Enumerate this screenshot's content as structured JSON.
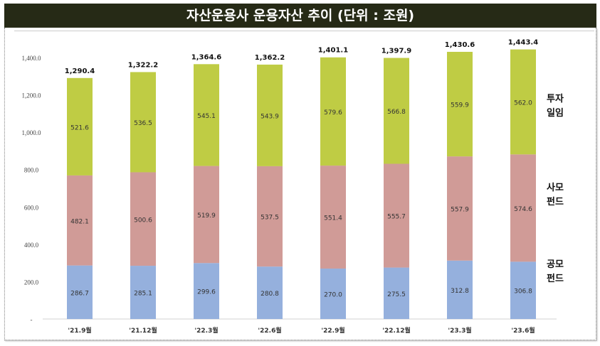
{
  "title": "자산운용사 운용자산 추이 (단위 : 조원)",
  "chart_data": {
    "type": "bar",
    "stacked": true,
    "title": "자산운용사 운용자산 추이 (단위 : 조원)",
    "categories": [
      "'21.9월",
      "'21.12월",
      "'22.3월",
      "'22.6월",
      "'22.9월",
      "'22.12월",
      "'23.3월",
      "'23.6월"
    ],
    "series": [
      {
        "name": "공모 펀드",
        "color": "#95b0dd",
        "values": [
          286.7,
          285.1,
          299.6,
          280.8,
          270.0,
          275.5,
          312.8,
          306.8
        ]
      },
      {
        "name": "사모 펀드",
        "color": "#d09b97",
        "values": [
          482.1,
          500.6,
          519.9,
          537.5,
          551.4,
          555.7,
          557.9,
          574.6
        ]
      },
      {
        "name": "투자 일임",
        "color": "#bfcc44",
        "values": [
          521.6,
          536.5,
          545.1,
          543.9,
          579.6,
          566.8,
          559.9,
          562.0
        ]
      }
    ],
    "totals": [
      "1,290.4",
      "1,322.2",
      "1,364.6",
      "1,362.2",
      "1,401.1",
      "1,397.9",
      "1,430.6",
      "1,443.4"
    ],
    "value_labels": [
      [
        "286.7",
        "285.1",
        "299.6",
        "280.8",
        "270.0",
        "275.5",
        "312.8",
        "306.8"
      ],
      [
        "482.1",
        "500.6",
        "519.9",
        "537.5",
        "551.4",
        "555.7",
        "557.9",
        "574.6"
      ],
      [
        "521.6",
        "536.5",
        "545.1",
        "543.9",
        "579.6",
        "566.8",
        "559.9",
        "562.0"
      ]
    ],
    "yticks": [
      "-",
      "200.0",
      "400.0",
      "600.0",
      "800.0",
      "1,000.0",
      "1,200.0",
      "1,400.0"
    ],
    "ylim": [
      0,
      1400
    ],
    "grid": false,
    "legend_position": "right",
    "legend": [
      [
        "투자",
        "일임"
      ],
      [
        "사모",
        "펀드"
      ],
      [
        "공모",
        "펀드"
      ]
    ]
  }
}
